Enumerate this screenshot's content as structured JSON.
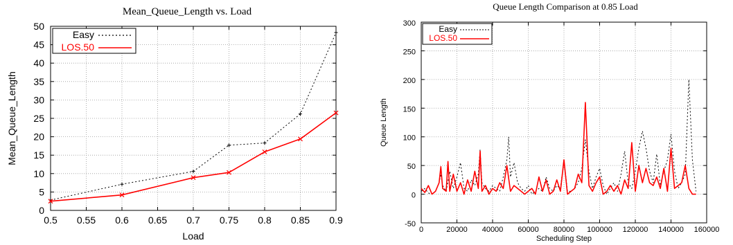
{
  "chart_data": [
    {
      "type": "line",
      "title": "Mean_Queue_Length vs. Load",
      "xlabel": "Load",
      "ylabel": "Mean_Queue_Length",
      "xlim": [
        0.5,
        0.9
      ],
      "ylim": [
        0,
        50
      ],
      "xticks": [
        "0.5",
        "0.55",
        "0.6",
        "0.65",
        "0.7",
        "0.75",
        "0.8",
        "0.85",
        "0.9"
      ],
      "yticks": [
        "0",
        "5",
        "10",
        "15",
        "20",
        "25",
        "30",
        "35",
        "40",
        "45",
        "50"
      ],
      "grid": true,
      "legend_position": "top-left",
      "x": [
        0.5,
        0.6,
        0.7,
        0.75,
        0.8,
        0.85,
        0.9
      ],
      "series": [
        {
          "name": "Easy",
          "color": "#000000",
          "style": "dotted",
          "values": [
            2.8,
            7.1,
            10.6,
            17.7,
            18.3,
            26.2,
            48.3
          ]
        },
        {
          "name": "LOS.50",
          "color": "#ff0000",
          "style": "solid",
          "values": [
            2.5,
            4.2,
            8.9,
            10.3,
            15.9,
            19.4,
            26.5
          ]
        }
      ]
    },
    {
      "type": "line",
      "title": "Queue Length Comparison at 0.85 Load",
      "xlabel": "Scheduling Step",
      "ylabel": "Queue Length",
      "xlim": [
        0,
        160000
      ],
      "ylim": [
        -50,
        300
      ],
      "xticks": [
        "0",
        "20000",
        "40000",
        "60000",
        "80000",
        "100000",
        "120000",
        "140000",
        "160000"
      ],
      "yticks": [
        "-50",
        "0",
        "50",
        "100",
        "150",
        "200",
        "250",
        "300"
      ],
      "grid": true,
      "legend_position": "top-left",
      "series": [
        {
          "name": "Easy",
          "color": "#000000",
          "style": "dotted",
          "x": [
            0,
            2000,
            4000,
            6000,
            8000,
            10000,
            11000,
            12000,
            14000,
            16000,
            18000,
            20000,
            22000,
            24000,
            26000,
            28000,
            30000,
            32000,
            33000,
            34000,
            36000,
            38000,
            40000,
            42000,
            44000,
            46000,
            48000,
            49000,
            50000,
            52000,
            54000,
            56000,
            58000,
            60000,
            62000,
            64000,
            66000,
            68000,
            70000,
            72000,
            74000,
            76000,
            78000,
            80000,
            82000,
            84000,
            86000,
            88000,
            90000,
            92000,
            94000,
            96000,
            98000,
            100000,
            102000,
            104000,
            106000,
            108000,
            110000,
            112000,
            114000,
            116000,
            118000,
            120000,
            122000,
            124000,
            126000,
            128000,
            130000,
            132000,
            134000,
            136000,
            138000,
            140000,
            142000,
            144000,
            146000,
            148000,
            150000,
            152000,
            154000
          ],
          "values": [
            5,
            10,
            2,
            0,
            5,
            20,
            35,
            15,
            5,
            40,
            10,
            30,
            55,
            10,
            5,
            25,
            15,
            35,
            78,
            20,
            10,
            5,
            15,
            10,
            5,
            30,
            60,
            100,
            30,
            55,
            20,
            10,
            5,
            15,
            0,
            5,
            10,
            5,
            30,
            10,
            5,
            15,
            10,
            60,
            5,
            5,
            10,
            20,
            45,
            95,
            40,
            10,
            30,
            45,
            15,
            0,
            10,
            20,
            5,
            35,
            75,
            20,
            10,
            40,
            80,
            110,
            80,
            40,
            20,
            70,
            15,
            40,
            60,
            105,
            40,
            10,
            20,
            35,
            200,
            60,
            5
          ]
        },
        {
          "name": "LOS.50",
          "color": "#ff0000",
          "style": "solid",
          "x": [
            0,
            2000,
            4000,
            6000,
            8000,
            10000,
            11000,
            12000,
            14000,
            15000,
            16000,
            18000,
            20000,
            22000,
            24000,
            26000,
            28000,
            30000,
            32000,
            33000,
            34000,
            36000,
            38000,
            40000,
            42000,
            44000,
            46000,
            48000,
            50000,
            52000,
            54000,
            56000,
            58000,
            60000,
            62000,
            64000,
            66000,
            68000,
            70000,
            72000,
            74000,
            76000,
            78000,
            80000,
            82000,
            84000,
            86000,
            88000,
            90000,
            92000,
            94000,
            96000,
            98000,
            100000,
            102000,
            104000,
            106000,
            108000,
            110000,
            112000,
            114000,
            116000,
            118000,
            120000,
            122000,
            124000,
            126000,
            128000,
            130000,
            132000,
            134000,
            136000,
            138000,
            140000,
            142000,
            144000,
            146000,
            148000,
            150000,
            152000,
            154000
          ],
          "values": [
            10,
            3,
            15,
            0,
            5,
            20,
            48,
            10,
            5,
            57,
            5,
            35,
            5,
            20,
            0,
            25,
            5,
            40,
            10,
            75,
            5,
            15,
            0,
            10,
            5,
            20,
            10,
            50,
            5,
            15,
            10,
            5,
            0,
            5,
            10,
            0,
            30,
            5,
            25,
            0,
            5,
            25,
            5,
            60,
            0,
            5,
            10,
            35,
            20,
            160,
            15,
            5,
            20,
            30,
            0,
            5,
            15,
            5,
            15,
            0,
            25,
            10,
            90,
            5,
            50,
            20,
            45,
            20,
            15,
            30,
            10,
            45,
            5,
            80,
            10,
            15,
            20,
            50,
            10,
            0,
            0
          ]
        }
      ]
    }
  ]
}
